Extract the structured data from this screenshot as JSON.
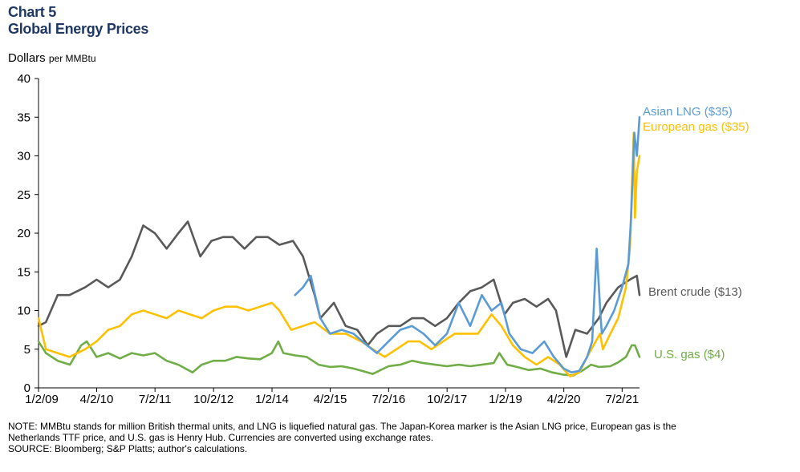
{
  "title_line1": "Chart 5",
  "title_line2": "Global Energy Prices",
  "unit_main": "Dollars",
  "unit_small": "per MMBtu",
  "note": "NOTE: MMBtu stands for million British thermal units, and LNG is liquefied natural gas. The Japan-Korea  marker is the Asian LNG price, European gas is the",
  "note2": "Netherlands  TTF price, and U.S. gas is Henry Hub. Currencies are converted  using exchange rates.",
  "source": "SOURCE: Bloomberg;  S&P Platts; author's calculations.",
  "chart_data": {
    "type": "line",
    "title": "Global Energy Prices",
    "ylabel": "Dollars per MMBtu",
    "xlabel": "",
    "ylim": [
      0,
      40
    ],
    "yticks": [
      "0",
      "5",
      "10",
      "15",
      "20",
      "25",
      "30",
      "35",
      "40"
    ],
    "xlim": [
      "2009-01-02",
      "2021-11-15"
    ],
    "xticks": [
      "1/2/09",
      "4/2/10",
      "7/2/11",
      "10/2/12",
      "1/2/14",
      "4/2/15",
      "7/2/16",
      "10/2/17",
      "1/2/19",
      "4/2/20",
      "7/2/21"
    ],
    "grid": false,
    "legend": "direct labels at line ends",
    "series": [
      {
        "name": "Brent crude ($13)",
        "color": "#595959",
        "x": [
          "2009-01-02",
          "2009-03-01",
          "2009-06-01",
          "2009-09-01",
          "2010-01-01",
          "2010-04-01",
          "2010-07-01",
          "2010-10-01",
          "2011-01-01",
          "2011-04-01",
          "2011-07-01",
          "2011-10-01",
          "2012-01-01",
          "2012-03-15",
          "2012-06-20",
          "2012-09-15",
          "2012-12-15",
          "2013-03-01",
          "2013-06-01",
          "2013-09-01",
          "2013-12-01",
          "2014-03-01",
          "2014-06-15",
          "2014-09-01",
          "2014-12-01",
          "2015-01-15",
          "2015-05-01",
          "2015-08-01",
          "2015-11-01",
          "2016-01-20",
          "2016-04-01",
          "2016-07-01",
          "2016-10-01",
          "2017-01-01",
          "2017-04-01",
          "2017-07-01",
          "2017-10-01",
          "2018-01-01",
          "2018-04-01",
          "2018-07-01",
          "2018-10-01",
          "2018-12-25",
          "2019-03-01",
          "2019-06-01",
          "2019-09-01",
          "2019-12-01",
          "2020-02-01",
          "2020-04-21",
          "2020-07-01",
          "2020-10-01",
          "2021-01-01",
          "2021-03-01",
          "2021-06-01",
          "2021-09-01",
          "2021-10-25",
          "2021-11-15"
        ],
        "values": [
          8,
          8.5,
          12,
          12,
          13,
          14,
          13,
          14,
          17,
          21,
          20,
          18,
          20,
          21.5,
          17,
          19,
          19.5,
          19.5,
          18,
          19.5,
          19.5,
          18.5,
          19,
          17,
          12,
          9,
          11,
          8,
          7.5,
          5.5,
          7,
          8,
          8,
          9,
          9,
          8,
          9,
          11,
          12.5,
          13,
          14,
          9.5,
          11,
          11.5,
          10.5,
          11.5,
          10,
          4,
          7.5,
          7,
          9,
          11,
          13,
          14,
          14.5,
          12
        ]
      },
      {
        "name": "Asian LNG ($35)",
        "color": "#5b9bd5",
        "x": [
          "2014-07-01",
          "2014-09-01",
          "2014-11-01",
          "2015-01-15",
          "2015-04-01",
          "2015-07-01",
          "2015-10-01",
          "2016-01-15",
          "2016-04-01",
          "2016-07-01",
          "2016-10-01",
          "2017-01-01",
          "2017-04-01",
          "2017-07-01",
          "2017-10-01",
          "2018-01-01",
          "2018-04-01",
          "2018-07-01",
          "2018-09-15",
          "2018-12-01",
          "2019-02-01",
          "2019-05-01",
          "2019-08-01",
          "2019-11-01",
          "2020-01-15",
          "2020-04-01",
          "2020-06-01",
          "2020-08-01",
          "2020-10-01",
          "2020-11-10",
          "2020-12-15",
          "2021-01-15",
          "2021-01-25",
          "2021-03-01",
          "2021-05-01",
          "2021-07-01",
          "2021-08-20",
          "2021-09-10",
          "2021-10-05",
          "2021-10-25",
          "2021-11-15"
        ],
        "values": [
          12,
          13,
          14.5,
          9,
          7,
          7.5,
          7,
          5.5,
          4.5,
          6,
          7.5,
          8,
          7,
          5.5,
          7,
          11,
          8,
          12,
          10,
          11,
          7,
          5,
          4.5,
          6,
          4,
          2.5,
          2,
          2.2,
          4,
          6,
          18,
          9,
          7,
          8,
          10,
          13,
          16,
          22,
          33,
          30,
          35
        ]
      },
      {
        "name": "European  gas ($35)",
        "color": "#ffc000",
        "x": [
          "2009-01-02",
          "2009-03-01",
          "2009-06-01",
          "2009-09-01",
          "2010-01-01",
          "2010-04-01",
          "2010-07-01",
          "2010-10-01",
          "2011-01-01",
          "2011-04-01",
          "2011-07-01",
          "2011-10-01",
          "2012-01-01",
          "2012-04-01",
          "2012-07-01",
          "2012-10-01",
          "2013-01-01",
          "2013-04-01",
          "2013-07-01",
          "2013-10-01",
          "2014-01-01",
          "2014-03-01",
          "2014-06-01",
          "2014-09-01",
          "2014-12-01",
          "2015-04-01",
          "2015-08-01",
          "2015-12-01",
          "2016-03-01",
          "2016-06-01",
          "2016-09-01",
          "2016-12-01",
          "2017-03-01",
          "2017-06-01",
          "2017-09-01",
          "2017-12-01",
          "2018-03-01",
          "2018-06-01",
          "2018-09-15",
          "2018-12-01",
          "2019-03-01",
          "2019-06-01",
          "2019-09-01",
          "2019-12-01",
          "2020-03-01",
          "2020-05-20",
          "2020-08-01",
          "2020-10-01",
          "2021-01-10",
          "2021-02-01",
          "2021-04-01",
          "2021-06-01",
          "2021-08-01",
          "2021-09-01",
          "2021-10-01",
          "2021-10-10",
          "2021-10-25",
          "2021-11-15"
        ],
        "values": [
          9,
          5,
          4.5,
          4,
          5,
          6,
          7.5,
          8,
          9.5,
          10,
          9.5,
          9,
          10,
          9.5,
          9,
          10,
          10.5,
          10.5,
          10,
          10.5,
          11,
          10,
          7.5,
          8,
          8.5,
          7,
          7,
          6,
          5,
          4,
          5,
          6,
          6,
          5,
          6,
          7,
          7,
          7,
          9.5,
          8,
          5.5,
          4,
          3,
          4,
          3,
          1.5,
          2,
          4,
          7,
          5,
          7,
          9,
          13,
          18,
          33,
          22,
          28,
          30
        ]
      },
      {
        "name": "U.S. gas ($4)",
        "color": "#70ad47",
        "x": [
          "2009-01-02",
          "2009-03-01",
          "2009-06-01",
          "2009-09-05",
          "2009-12-01",
          "2010-01-15",
          "2010-04-01",
          "2010-07-01",
          "2010-10-01",
          "2011-01-01",
          "2011-04-01",
          "2011-07-01",
          "2011-10-01",
          "2012-01-01",
          "2012-04-20",
          "2012-07-01",
          "2012-10-01",
          "2013-01-01",
          "2013-04-01",
          "2013-07-01",
          "2013-10-01",
          "2014-01-01",
          "2014-02-20",
          "2014-04-01",
          "2014-07-01",
          "2014-10-01",
          "2015-01-01",
          "2015-04-01",
          "2015-07-01",
          "2015-10-01",
          "2016-03-01",
          "2016-07-01",
          "2016-10-01",
          "2017-01-01",
          "2017-04-01",
          "2017-07-01",
          "2017-10-01",
          "2018-01-01",
          "2018-04-01",
          "2018-07-01",
          "2018-10-01",
          "2018-11-15",
          "2019-01-15",
          "2019-04-01",
          "2019-07-01",
          "2019-10-01",
          "2020-01-01",
          "2020-04-01",
          "2020-06-15",
          "2020-09-01",
          "2020-11-01",
          "2021-01-01",
          "2021-04-01",
          "2021-06-01",
          "2021-08-01",
          "2021-09-15",
          "2021-10-10",
          "2021-11-15"
        ],
        "values": [
          6,
          4.5,
          3.5,
          3,
          5.5,
          6,
          4,
          4.5,
          3.8,
          4.5,
          4.2,
          4.5,
          3.5,
          3,
          2,
          3,
          3.5,
          3.5,
          4,
          3.8,
          3.7,
          4.5,
          6,
          4.5,
          4.2,
          4,
          3,
          2.7,
          2.8,
          2.5,
          1.8,
          2.8,
          3,
          3.5,
          3.2,
          3,
          2.8,
          3,
          2.8,
          3,
          3.2,
          4.5,
          3,
          2.7,
          2.3,
          2.5,
          2,
          1.7,
          1.6,
          2.3,
          3,
          2.7,
          2.8,
          3.3,
          4,
          5.5,
          5.5,
          4
        ]
      }
    ]
  }
}
